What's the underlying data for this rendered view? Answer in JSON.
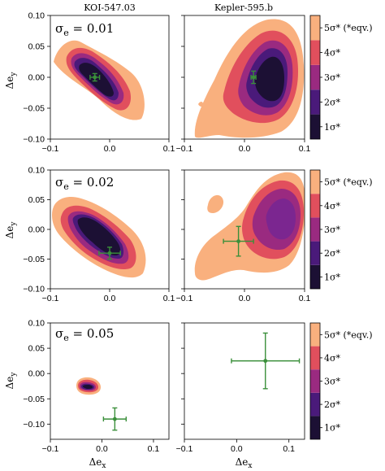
{
  "chart_data": {
    "type": "contour",
    "columns": [
      "KOI-547.03",
      "Kepler-595.b"
    ],
    "xlabel": "Δe_x",
    "ylabel": "Δe_y",
    "xticks": [
      "−0.1",
      "0.0",
      "0.1"
    ],
    "yticks": [
      "0.10",
      "0.05",
      "0.00",
      "−0.05",
      "−0.10"
    ],
    "colorbar": {
      "labels": [
        "1σ*",
        "2σ*",
        "3σ*",
        "4σ*",
        "5σ* (*eqv.)"
      ],
      "colors": [
        "#1c1034",
        "#4a1a7a",
        "#9a2a80",
        "#e14f5d",
        "#f9b07e"
      ]
    },
    "rows": [
      {
        "label": "σ_e = 0.01",
        "xlim": [
          -0.1,
          0.1
        ],
        "ylim": [
          -0.1,
          0.1
        ],
        "panels": [
          {
            "object": "KOI-547.03",
            "point": {
              "x": -0.025,
              "y": 0.0,
              "xerr": 0.008,
              "yerr": 0.006
            }
          },
          {
            "object": "Kepler-595.b",
            "point": {
              "x": 0.015,
              "y": 0.0,
              "xerr": 0.004,
              "yerr": 0.01
            }
          }
        ]
      },
      {
        "label": "σ_e = 0.02",
        "xlim": [
          -0.1,
          0.1
        ],
        "ylim": [
          -0.1,
          0.1
        ],
        "panels": [
          {
            "object": "KOI-547.03",
            "point": {
              "x": 0.0,
              "y": -0.04,
              "xerr": 0.018,
              "yerr": 0.01
            }
          },
          {
            "object": "Kepler-595.b",
            "point": {
              "x": -0.01,
              "y": -0.02,
              "xerr": 0.025,
              "yerr": 0.025
            }
          }
        ]
      },
      {
        "label": "σ_e = 0.05",
        "xlim": [
          -0.1,
          0.13
        ],
        "ylim": [
          -0.13,
          0.1
        ],
        "panels": [
          {
            "object": "KOI-547.03",
            "point": {
              "x": 0.025,
              "y": -0.09,
              "xerr": 0.022,
              "yerr": 0.022
            }
          },
          {
            "object": "Kepler-595.b",
            "point": {
              "x": 0.055,
              "y": 0.025,
              "xerr": 0.065,
              "yerr": 0.055
            }
          }
        ]
      }
    ]
  }
}
